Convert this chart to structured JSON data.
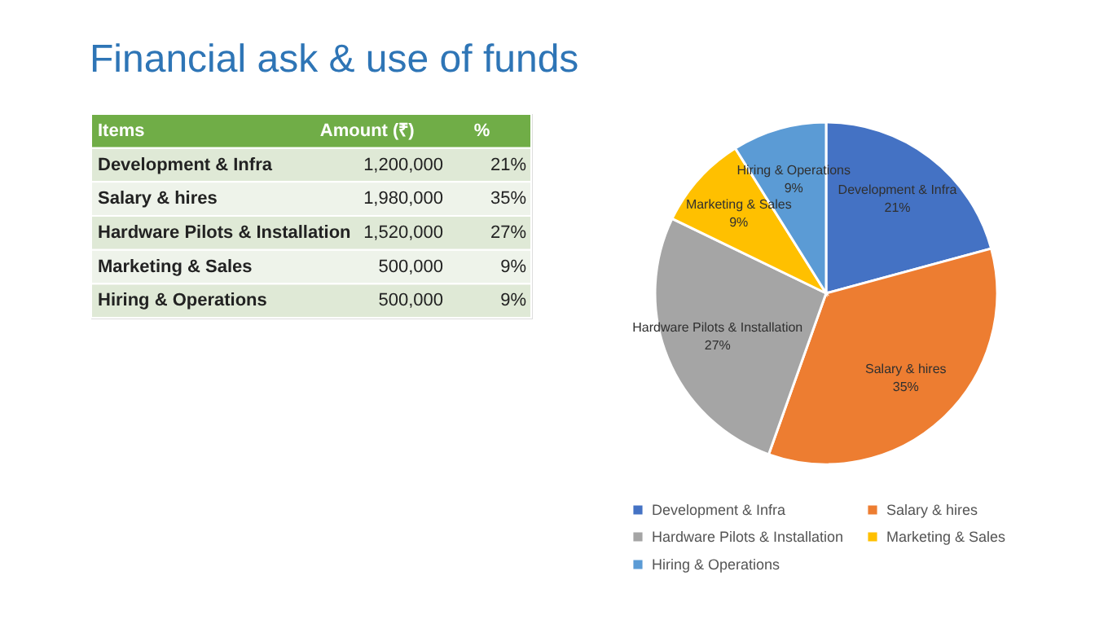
{
  "chart_data": [
    {
      "type": "other",
      "annotations": [
        "Items",
        "Amount (₹)",
        "%",
        "Development & Infra",
        "1,200,000",
        "21%",
        "Salary & hires",
        "1,980,000",
        "35%",
        "Hardware Pilots & Installation",
        "1,520,000",
        "27%",
        "Marketing & Sales",
        "500,000",
        "9%",
        "Hiring & Operations",
        "500,000",
        "9%"
      ]
    },
    {
      "type": "pie",
      "title": "Financial ask & use of funds",
      "categories": [
        "Development & Infra",
        "Salary & hires",
        "Hardware Pilots & Installation",
        "Marketing & Sales",
        "Hiring & Operations"
      ],
      "values": [
        21,
        35,
        27,
        9,
        9
      ],
      "value_labels": [
        "21%",
        "35%",
        "27%",
        "9%",
        "9%"
      ],
      "colors": [
        "#4472c4",
        "#ed7d31",
        "#a5a5a5",
        "#ffc000",
        "#5b9bd5"
      ],
      "legend": "bottom"
    }
  ]
}
